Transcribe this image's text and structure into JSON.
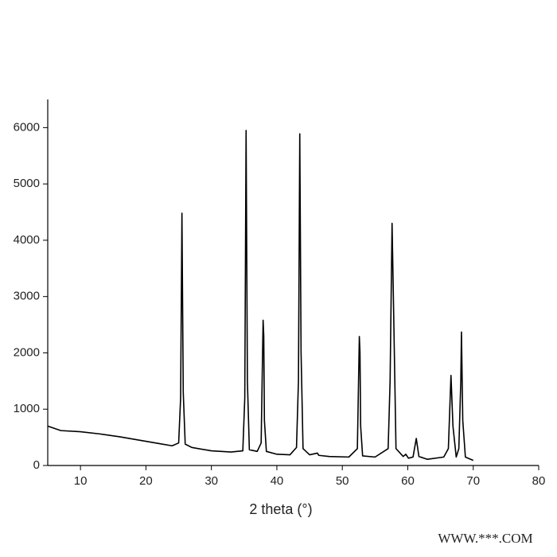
{
  "chart_data": {
    "type": "line",
    "xlabel": "2 theta (°)",
    "watermark": "WWW.***.COM",
    "xlim": [
      5,
      80
    ],
    "xticks": [
      10,
      20,
      30,
      40,
      50,
      60,
      70,
      80
    ],
    "ylim": [
      0,
      6500
    ],
    "yticks": [
      0,
      1000,
      2000,
      3000,
      4000,
      5000,
      6000
    ],
    "grid": false,
    "color": "#000000",
    "x": [
      5,
      7,
      10,
      13,
      16,
      19,
      22,
      24,
      25,
      25.3,
      25.5,
      25.7,
      26,
      27,
      30,
      33,
      34.8,
      35.1,
      35.3,
      35.5,
      35.8,
      37,
      37.6,
      37.9,
      38.0,
      38.1,
      38.4,
      40,
      42,
      43,
      43.3,
      43.5,
      43.7,
      44,
      45,
      46.2,
      46.4,
      48,
      51,
      52.3,
      52.6,
      52.7,
      52.8,
      53.1,
      55,
      57,
      57.3,
      57.6,
      57.8,
      58.2,
      59.3,
      59.7,
      60.1,
      60.8,
      61.3,
      61.7,
      63,
      65.5,
      66.2,
      66.6,
      66.9,
      67.4,
      67.8,
      68.1,
      68.2,
      68.4,
      68.8,
      70
    ],
    "values": [
      700,
      620,
      600,
      560,
      510,
      450,
      390,
      350,
      400,
      1200,
      4480,
      1300,
      380,
      320,
      260,
      240,
      260,
      1200,
      5950,
      1500,
      280,
      250,
      400,
      2580,
      2300,
      800,
      250,
      200,
      190,
      320,
      1500,
      5890,
      2000,
      300,
      190,
      220,
      180,
      160,
      150,
      300,
      2290,
      2000,
      700,
      170,
      150,
      300,
      1500,
      4300,
      3000,
      300,
      160,
      200,
      130,
      150,
      480,
      160,
      110,
      150,
      300,
      1600,
      700,
      150,
      300,
      1500,
      2370,
      800,
      150,
      90
    ]
  }
}
